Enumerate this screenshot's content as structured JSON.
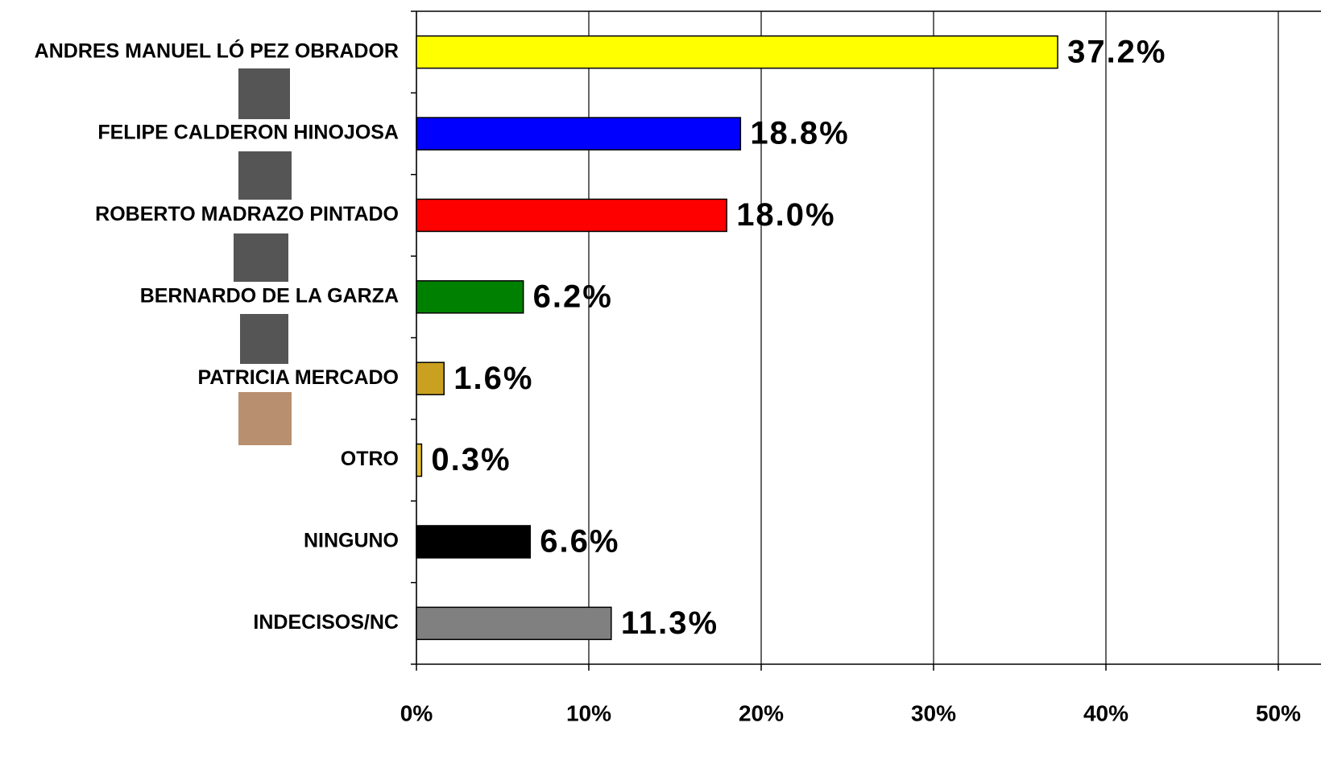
{
  "chart_data": {
    "type": "barh",
    "categories": [
      "ANDRES MANUEL LÓ PEZ OBRADOR",
      "FELIPE CALDERON HINOJOSA",
      "ROBERTO MADRAZO PINTADO",
      "BERNARDO DE LA GARZA",
      "PATRICIA MERCADO",
      "OTRO",
      "NINGUNO",
      "INDECISOS/NC"
    ],
    "values": [
      37.2,
      18.8,
      18.0,
      6.2,
      1.6,
      0.3,
      6.6,
      11.3
    ],
    "value_labels": [
      "37.2%",
      "18.8%",
      "18.0%",
      "6.2%",
      "1.6%",
      "0.3%",
      "6.6%",
      "11.3%"
    ],
    "colors": [
      "#ffff00",
      "#0000ff",
      "#ff0000",
      "#008000",
      "#c9a020",
      "#e8c030",
      "#000000",
      "#808080"
    ],
    "xlim": [
      0,
      50
    ],
    "xticks": [
      {
        "value": 0,
        "label": "0%"
      },
      {
        "value": 10,
        "label": "10%"
      },
      {
        "value": 20,
        "label": "20%"
      },
      {
        "value": 30,
        "label": "30%"
      },
      {
        "value": 40,
        "label": "40%"
      },
      {
        "value": 50,
        "label": "50%"
      }
    ],
    "grid": true
  }
}
